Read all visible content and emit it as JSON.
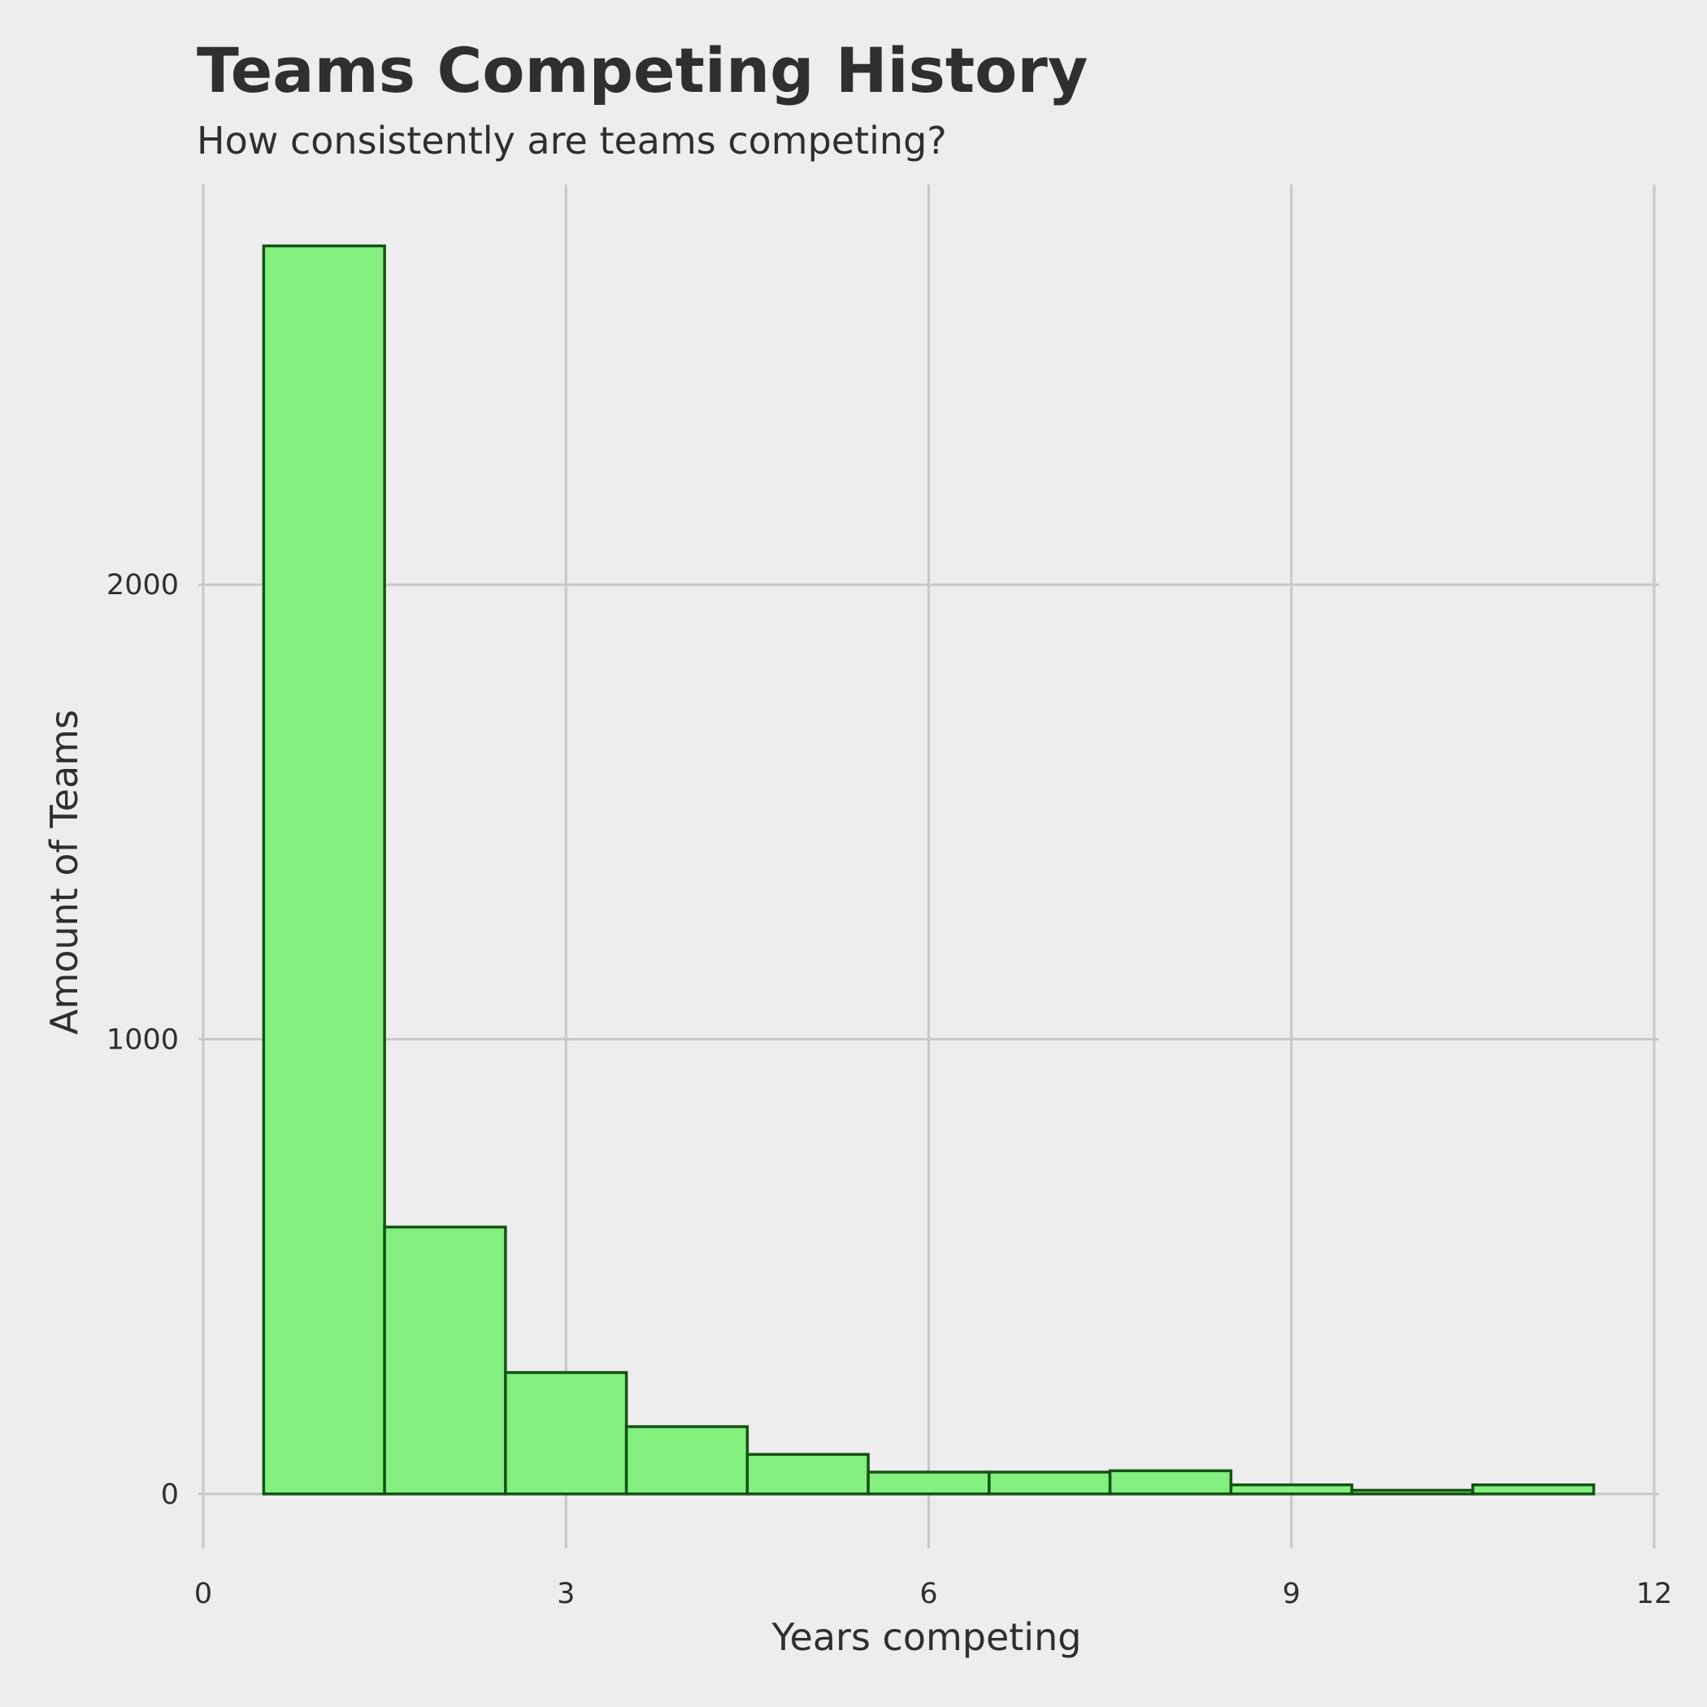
{
  "chart_data": {
    "type": "bar",
    "title": "Teams Competing History",
    "subtitle": "How consistently are teams competing?",
    "xlabel": "Years competing",
    "ylabel": "Amount of Teams",
    "xlim": [
      0,
      12
    ],
    "ylim": [
      -120,
      2880
    ],
    "x_ticks": [
      0,
      3,
      6,
      9,
      12
    ],
    "y_ticks": [
      0,
      1000,
      2000
    ],
    "grid": true,
    "bin_width": 1,
    "x": [
      1,
      2,
      3,
      4,
      5,
      6,
      7,
      8,
      9,
      10,
      11
    ],
    "values": [
      2745,
      587,
      267,
      148,
      87,
      48,
      48,
      51,
      20,
      8,
      20
    ],
    "bar_fill": "#82ef7e",
    "bar_stroke": "#145214",
    "grid_color": "#c8c8c8",
    "background": "#ededed"
  }
}
